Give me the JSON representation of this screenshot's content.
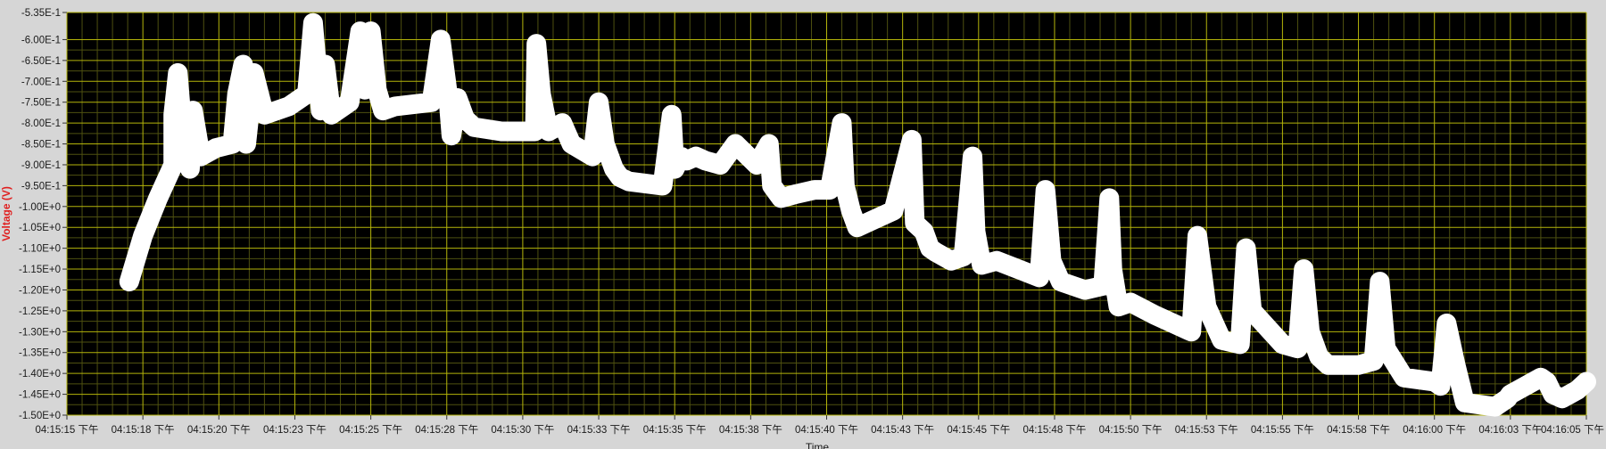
{
  "chart_data": {
    "type": "line",
    "title": "",
    "xlabel": "Time",
    "ylabel": "Voltage (V)",
    "ylim": [
      -1.5,
      -0.535
    ],
    "y_ticks": [
      -0.535,
      -0.6,
      -0.65,
      -0.7,
      -0.75,
      -0.8,
      -0.85,
      -0.9,
      -0.95,
      -1.0,
      -1.05,
      -1.1,
      -1.15,
      -1.2,
      -1.25,
      -1.3,
      -1.35,
      -1.4,
      -1.45,
      -1.5
    ],
    "y_tick_labels": [
      "-5.35E-1",
      "-6.00E-1",
      "-6.50E-1",
      "-7.00E-1",
      "-7.50E-1",
      "-8.00E-1",
      "-8.50E-1",
      "-9.00E-1",
      "-9.50E-1",
      "-1.00E+0",
      "-1.05E+0",
      "-1.10E+0",
      "-1.15E+0",
      "-1.20E+0",
      "-1.25E+0",
      "-1.30E+0",
      "-1.35E+0",
      "-1.40E+0",
      "-1.45E+0",
      "-1.50E+0"
    ],
    "x_tick_labels": [
      "04:15:15 下午",
      "04:15:18 下午",
      "04:15:20 下午",
      "04:15:23 下午",
      "04:15:25 下午",
      "04:15:28 下午",
      "04:15:30 下午",
      "04:15:33 下午",
      "04:15:35 下午",
      "04:15:38 下午",
      "04:15:40 下午",
      "04:15:43 下午",
      "04:15:45 下午",
      "04:15:48 下午",
      "04:15:50 下午",
      "04:15:53 下午",
      "04:15:55 下午",
      "04:15:58 下午",
      "04:16:00 下午",
      "04:16:03 下午",
      "04:16:05 下午"
    ],
    "xlim": [
      "04:15:15 下午",
      "04:16:05 下午"
    ],
    "grid": true,
    "colors": {
      "plot_bg": "#000000",
      "grid_major": "#b4b40a",
      "grid_minor": "#4e5010",
      "trace": "#ffffff",
      "frame": "#d6d6d6",
      "ylabel": "#e02020"
    },
    "series": [
      {
        "x_seconds": [
          2.05,
          2.5,
          3.0,
          3.5,
          3.5,
          3.65,
          3.85,
          4.05,
          4.15,
          4.4,
          4.9,
          5.45,
          5.6,
          5.8,
          5.9,
          6.15,
          6.5,
          7.3,
          7.9,
          8.1,
          8.35,
          8.5,
          8.7,
          9.3,
          9.65,
          9.8,
          10.0,
          10.2,
          10.4,
          10.8,
          12.0,
          12.3,
          12.55,
          12.65,
          12.85,
          13.1,
          13.4,
          14.3,
          15.4,
          15.45,
          15.6,
          15.85,
          16.1,
          16.3,
          16.6,
          17.3,
          17.5,
          17.7,
          18.0,
          18.2,
          18.5,
          19.6,
          19.9,
          20.0,
          20.2,
          20.4,
          20.7,
          21.0,
          21.5,
          22.0,
          22.7,
          23.1,
          23.2,
          23.5,
          24.0,
          24.6,
          25.1,
          25.5,
          25.6,
          25.8,
          26.0,
          26.3,
          27.2,
          27.8,
          27.9,
          28.2,
          28.4,
          28.6,
          29.1,
          29.5,
          29.8,
          29.9,
          30.1,
          30.6,
          32.0,
          32.2,
          32.4,
          32.7,
          33.5,
          34.1,
          34.3,
          34.4,
          34.6,
          35.0,
          35.8,
          37.0,
          37.2,
          37.5,
          38.0,
          38.6,
          38.8,
          39.0,
          40.0,
          40.5,
          40.7,
          40.9,
          41.2,
          41.5,
          42.5,
          43.0,
          43.2,
          43.4,
          44.0,
          45.0,
          45.2,
          45.4,
          45.7,
          46.0,
          47.0,
          47.4,
          47.5,
          48.5,
          48.7,
          48.9,
          49.2,
          49.7,
          50.0
        ],
        "y_v": [
          -1.18,
          -1.07,
          -0.98,
          -0.9,
          -0.78,
          -0.68,
          -0.86,
          -0.91,
          -0.77,
          -0.88,
          -0.86,
          -0.85,
          -0.73,
          -0.66,
          -0.85,
          -0.68,
          -0.78,
          -0.76,
          -0.73,
          -0.56,
          -0.77,
          -0.66,
          -0.78,
          -0.75,
          -0.58,
          -0.72,
          -0.58,
          -0.72,
          -0.77,
          -0.76,
          -0.75,
          -0.6,
          -0.74,
          -0.83,
          -0.74,
          -0.79,
          -0.81,
          -0.82,
          -0.82,
          -0.61,
          -0.73,
          -0.82,
          -0.81,
          -0.8,
          -0.85,
          -0.88,
          -0.75,
          -0.85,
          -0.91,
          -0.93,
          -0.94,
          -0.95,
          -0.78,
          -0.91,
          -0.88,
          -0.89,
          -0.88,
          -0.89,
          -0.9,
          -0.85,
          -0.9,
          -0.85,
          -0.95,
          -0.98,
          -0.97,
          -0.96,
          -0.96,
          -0.8,
          -0.95,
          -1.01,
          -1.05,
          -1.04,
          -1.01,
          -0.84,
          -1.04,
          -1.06,
          -1.1,
          -1.11,
          -1.13,
          -1.12,
          -0.88,
          -1.06,
          -1.14,
          -1.13,
          -1.17,
          -0.96,
          -1.13,
          -1.18,
          -1.2,
          -1.19,
          -0.98,
          -1.15,
          -1.24,
          -1.23,
          -1.26,
          -1.3,
          -1.07,
          -1.24,
          -1.32,
          -1.33,
          -1.1,
          -1.25,
          -1.33,
          -1.34,
          -1.15,
          -1.3,
          -1.36,
          -1.38,
          -1.38,
          -1.37,
          -1.18,
          -1.34,
          -1.41,
          -1.42,
          -1.43,
          -1.28,
          -1.38,
          -1.47,
          -1.48,
          -1.46,
          -1.45,
          -1.41,
          -1.42,
          -1.45,
          -1.46,
          -1.44,
          -1.42
        ]
      }
    ]
  }
}
